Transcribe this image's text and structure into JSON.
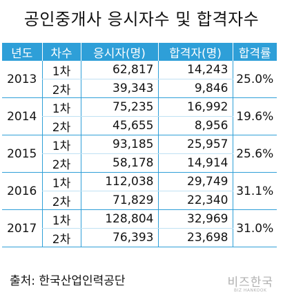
{
  "chart_data": {
    "type": "table",
    "title": "공인중개사 응시자수 및 합격자수",
    "columns": [
      "년도",
      "차수",
      "응시자(명)",
      "합격자(명)",
      "합격률"
    ],
    "rows": [
      {
        "year": "2013",
        "rate": "25.0%",
        "rounds": [
          {
            "round": "1차",
            "applicants": "62,817",
            "passers": "14,243"
          },
          {
            "round": "2차",
            "applicants": "39,343",
            "passers": "9,846"
          }
        ]
      },
      {
        "year": "2014",
        "rate": "19.6%",
        "rounds": [
          {
            "round": "1차",
            "applicants": "75,235",
            "passers": "16,992"
          },
          {
            "round": "2차",
            "applicants": "45,655",
            "passers": "8,956"
          }
        ]
      },
      {
        "year": "2015",
        "rate": "25.6%",
        "rounds": [
          {
            "round": "1차",
            "applicants": "93,185",
            "passers": "25,957"
          },
          {
            "round": "2차",
            "applicants": "58,178",
            "passers": "14,914"
          }
        ]
      },
      {
        "year": "2016",
        "rate": "31.1%",
        "rounds": [
          {
            "round": "1차",
            "applicants": "112,038",
            "passers": "29,749"
          },
          {
            "round": "2차",
            "applicants": "71,829",
            "passers": "22,340"
          }
        ]
      },
      {
        "year": "2017",
        "rate": "31.0%",
        "rounds": [
          {
            "round": "1차",
            "applicants": "128,804",
            "passers": "32,969"
          },
          {
            "round": "2차",
            "applicants": "76,393",
            "passers": "23,698"
          }
        ]
      }
    ]
  },
  "source": "출처: 한국산업인력공단",
  "logo": {
    "korean": "비즈한국",
    "english": "BIZ HANKOOK"
  },
  "colors": {
    "header_bg": "#2e9fd8",
    "header_text": "#ffffff",
    "logo": "#b0b0b0"
  }
}
